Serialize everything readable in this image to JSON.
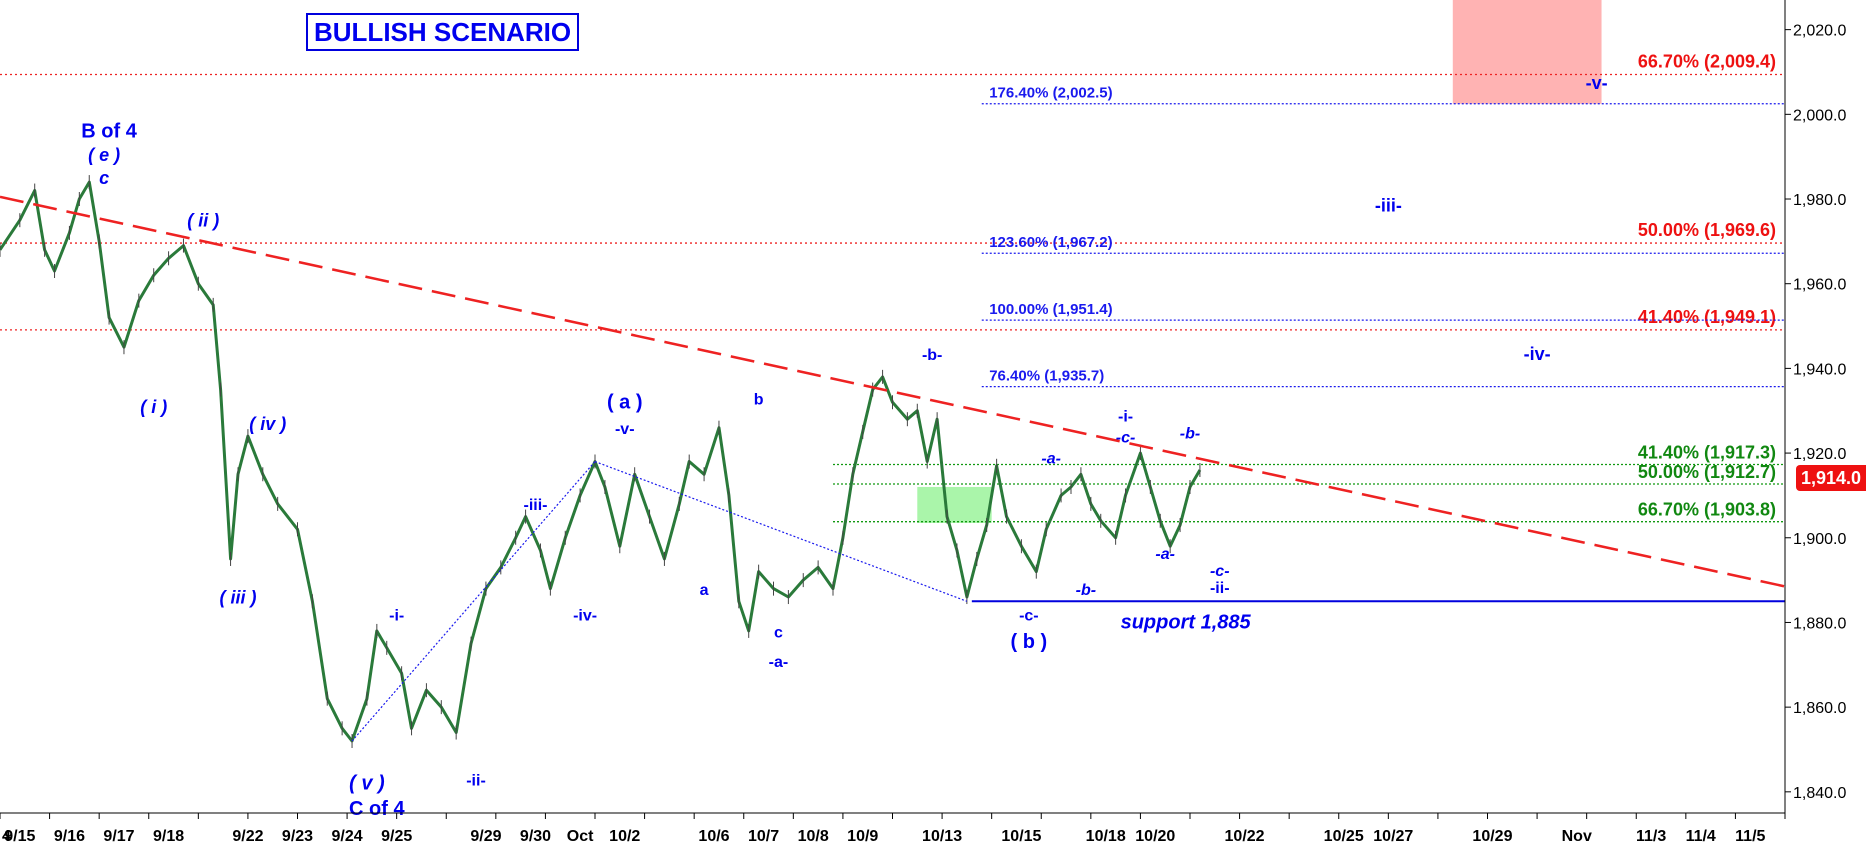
{
  "title": "BULLISH SCENARIO",
  "last_price_label": "1,914.0",
  "chart_data": {
    "type": "line",
    "y_axis": {
      "range": [
        1835,
        2027
      ],
      "ticks": [
        1840,
        1860,
        1880,
        1900,
        1920,
        1940,
        1960,
        1980,
        2000,
        2020
      ],
      "tick_labels": [
        "1,840.0",
        "1,860.0",
        "1,880.0",
        "1,900.0",
        "1,920.0",
        "1,940.0",
        "1,960.0",
        "1,980.0",
        "2,000.0",
        "2,020.0"
      ]
    },
    "x_axis": {
      "labels": [
        "9/15",
        "9/16",
        "9/17",
        "9/18",
        "9/22",
        "9/23",
        "9/24",
        "9/25",
        "9/29",
        "9/30",
        "Oct",
        "10/2",
        "10/6",
        "10/7",
        "10/8",
        "10/9",
        "10/13",
        "10/15",
        "10/18",
        "10/20",
        "10/22",
        "10/25",
        "10/27",
        "10/29",
        "Nov",
        "11/3",
        "11/4",
        "11/5"
      ],
      "positions_index": [
        0.4,
        1.4,
        2.4,
        3.4,
        5.0,
        6.0,
        7.0,
        8.0,
        9.8,
        10.8,
        11.7,
        12.6,
        14.4,
        15.4,
        16.4,
        17.4,
        19.0,
        20.6,
        22.3,
        23.3,
        25.1,
        27.1,
        28.1,
        30.1,
        31.8,
        33.3,
        34.3,
        35.3
      ],
      "index_range": [
        0,
        36
      ],
      "left_edge_label": "4"
    },
    "price_path": [
      [
        0,
        1968
      ],
      [
        0.4,
        1975
      ],
      [
        0.7,
        1982
      ],
      [
        0.9,
        1968
      ],
      [
        1.1,
        1963
      ],
      [
        1.4,
        1972
      ],
      [
        1.6,
        1980
      ],
      [
        1.8,
        1984
      ],
      [
        2.0,
        1970
      ],
      [
        2.2,
        1952
      ],
      [
        2.5,
        1945
      ],
      [
        2.8,
        1956
      ],
      [
        3.1,
        1962
      ],
      [
        3.4,
        1966
      ],
      [
        3.7,
        1969
      ],
      [
        4.0,
        1960
      ],
      [
        4.3,
        1955
      ],
      [
        4.45,
        1935
      ],
      [
        4.65,
        1895
      ],
      [
        4.8,
        1915
      ],
      [
        5.0,
        1924
      ],
      [
        5.3,
        1915
      ],
      [
        5.6,
        1908
      ],
      [
        6.0,
        1902
      ],
      [
        6.3,
        1885
      ],
      [
        6.6,
        1862
      ],
      [
        6.9,
        1855
      ],
      [
        7.1,
        1852
      ],
      [
        7.4,
        1862
      ],
      [
        7.6,
        1878
      ],
      [
        7.8,
        1874
      ],
      [
        8.1,
        1868
      ],
      [
        8.3,
        1855
      ],
      [
        8.6,
        1864
      ],
      [
        8.9,
        1860
      ],
      [
        9.2,
        1854
      ],
      [
        9.5,
        1875
      ],
      [
        9.8,
        1888
      ],
      [
        10.1,
        1893
      ],
      [
        10.4,
        1900
      ],
      [
        10.6,
        1905
      ],
      [
        10.9,
        1897
      ],
      [
        11.1,
        1888
      ],
      [
        11.4,
        1900
      ],
      [
        11.7,
        1910
      ],
      [
        12.0,
        1918
      ],
      [
        12.2,
        1912
      ],
      [
        12.5,
        1898
      ],
      [
        12.8,
        1915
      ],
      [
        13.1,
        1905
      ],
      [
        13.4,
        1895
      ],
      [
        13.7,
        1908
      ],
      [
        13.9,
        1918
      ],
      [
        14.2,
        1915
      ],
      [
        14.5,
        1926
      ],
      [
        14.7,
        1910
      ],
      [
        14.9,
        1885
      ],
      [
        15.1,
        1878
      ],
      [
        15.3,
        1892
      ],
      [
        15.6,
        1888
      ],
      [
        15.9,
        1886
      ],
      [
        16.2,
        1890
      ],
      [
        16.5,
        1893
      ],
      [
        16.8,
        1888
      ],
      [
        17.0,
        1900
      ],
      [
        17.2,
        1915
      ],
      [
        17.4,
        1925
      ],
      [
        17.6,
        1935
      ],
      [
        17.8,
        1938
      ],
      [
        18.0,
        1932
      ],
      [
        18.3,
        1928
      ],
      [
        18.5,
        1930
      ],
      [
        18.7,
        1918
      ],
      [
        18.9,
        1928
      ],
      [
        19.1,
        1905
      ],
      [
        19.3,
        1897
      ],
      [
        19.5,
        1886
      ],
      [
        19.7,
        1895
      ],
      [
        19.9,
        1903
      ],
      [
        20.1,
        1917
      ],
      [
        20.3,
        1905
      ],
      [
        20.6,
        1898
      ],
      [
        20.9,
        1892
      ],
      [
        21.1,
        1902
      ],
      [
        21.4,
        1910
      ],
      [
        21.6,
        1912
      ],
      [
        21.8,
        1915
      ],
      [
        22.0,
        1908
      ],
      [
        22.2,
        1904
      ],
      [
        22.5,
        1900
      ],
      [
        22.7,
        1910
      ],
      [
        23.0,
        1920
      ],
      [
        23.2,
        1912
      ],
      [
        23.4,
        1904
      ],
      [
        23.6,
        1898
      ],
      [
        23.8,
        1903
      ],
      [
        24.0,
        1912
      ],
      [
        24.2,
        1916
      ]
    ],
    "trendline": {
      "from": [
        0,
        1980.5
      ],
      "to": [
        36,
        1888.5
      ],
      "color": "#ee2222",
      "style": "dashed"
    },
    "blue_dotted_lines": [
      {
        "from": [
          7.1,
          1852
        ],
        "to": [
          12.0,
          1918
        ]
      },
      {
        "from": [
          12.0,
          1918
        ],
        "to": [
          19.5,
          1885
        ]
      }
    ],
    "support": {
      "value": 1885,
      "label": "support 1,885",
      "from_index": 19.6,
      "to_index": 36
    },
    "fib_levels_red": [
      {
        "value": 2009.4,
        "label": "66.70% (2,009.4)"
      },
      {
        "value": 1969.6,
        "label": "50.00% (1,969.6)"
      },
      {
        "value": 1949.1,
        "label": "41.40% (1,949.1)"
      }
    ],
    "fib_levels_blue": [
      {
        "value": 2002.5,
        "label": "176.40% (2,002.5)"
      },
      {
        "value": 1967.2,
        "label": "123.60% (1,967.2)"
      },
      {
        "value": 1951.4,
        "label": "100.00% (1,951.4)"
      },
      {
        "value": 1935.7,
        "label": "76.40% (1,935.7)"
      }
    ],
    "fib_levels_green": [
      {
        "value": 1917.3,
        "label": "41.40% (1,917.3)"
      },
      {
        "value": 1912.7,
        "label": "50.00% (1,912.7)"
      },
      {
        "value": 1903.8,
        "label": "66.70% (1,903.8)"
      }
    ],
    "zones": [
      {
        "color": "#ffb3b3",
        "x": [
          29.3,
          32.3
        ],
        "y": [
          2002.5,
          2027
        ]
      },
      {
        "color": "#aaf5aa",
        "x": [
          18.5,
          20.0
        ],
        "y": [
          1903.5,
          1912
        ]
      }
    ],
    "wave_labels": [
      {
        "text": "B of 4",
        "x": 2.2,
        "y": 1994.5,
        "size": 20
      },
      {
        "text": "( e )",
        "x": 2.1,
        "y": 1989,
        "size": 18,
        "italic": true
      },
      {
        "text": "c",
        "x": 2.1,
        "y": 1983.5,
        "size": 18,
        "italic": true
      },
      {
        "text": "( ii )",
        "x": 4.1,
        "y": 1973.5,
        "size": 18,
        "italic": true
      },
      {
        "text": "( i )",
        "x": 3.1,
        "y": 1929.5,
        "size": 18,
        "italic": true
      },
      {
        "text": "( iv )",
        "x": 5.4,
        "y": 1925.5,
        "size": 18,
        "italic": true
      },
      {
        "text": "( iii )",
        "x": 4.8,
        "y": 1884.5,
        "size": 18,
        "italic": true
      },
      {
        "text": "( v )",
        "x": 7.4,
        "y": 1840.5,
        "size": 20,
        "italic": true
      },
      {
        "text": "C of 4",
        "x": 7.6,
        "y": 1834.5,
        "size": 20
      },
      {
        "text": "-i-",
        "x": 8.0,
        "y": 1880.5,
        "size": 16
      },
      {
        "text": "-ii-",
        "x": 9.6,
        "y": 1841.5,
        "size": 16
      },
      {
        "text": "-iii-",
        "x": 10.8,
        "y": 1906.5,
        "size": 16
      },
      {
        "text": "-iv-",
        "x": 11.8,
        "y": 1880.5,
        "size": 16
      },
      {
        "text": "( a )",
        "x": 12.6,
        "y": 1930.5,
        "size": 20
      },
      {
        "text": "-v-",
        "x": 12.6,
        "y": 1924.5,
        "size": 16
      },
      {
        "text": "b",
        "x": 15.3,
        "y": 1931.5,
        "size": 16
      },
      {
        "text": "a",
        "x": 14.2,
        "y": 1886.5,
        "size": 16
      },
      {
        "text": "c",
        "x": 15.7,
        "y": 1876.5,
        "size": 16
      },
      {
        "text": "-a-",
        "x": 15.7,
        "y": 1869.5,
        "size": 16
      },
      {
        "text": "-b-",
        "x": 18.8,
        "y": 1942,
        "size": 16
      },
      {
        "text": "-c-",
        "x": 20.75,
        "y": 1880.5,
        "size": 16
      },
      {
        "text": "( b )",
        "x": 20.75,
        "y": 1874,
        "size": 20
      },
      {
        "text": "-a-",
        "x": 21.2,
        "y": 1917.5,
        "size": 16,
        "italic": true
      },
      {
        "text": "-b-",
        "x": 21.9,
        "y": 1886.5,
        "size": 16,
        "italic": true
      },
      {
        "text": "-i-",
        "x": 22.7,
        "y": 1927.5,
        "size": 16
      },
      {
        "text": "-c-",
        "x": 22.7,
        "y": 1922.5,
        "size": 16,
        "italic": true
      },
      {
        "text": "-a-",
        "x": 23.5,
        "y": 1895,
        "size": 16,
        "italic": true
      },
      {
        "text": "-b-",
        "x": 24.0,
        "y": 1923.5,
        "size": 16,
        "italic": true
      },
      {
        "text": "-c-",
        "x": 24.6,
        "y": 1891,
        "size": 16,
        "italic": true
      },
      {
        "text": "-ii-",
        "x": 24.6,
        "y": 1887,
        "size": 16
      },
      {
        "text": "-iii-",
        "x": 28.0,
        "y": 1977,
        "size": 18
      },
      {
        "text": "-iv-",
        "x": 31.0,
        "y": 1942,
        "size": 18
      },
      {
        "text": "-v-",
        "x": 32.2,
        "y": 2006,
        "size": 18
      }
    ],
    "grid": false
  }
}
